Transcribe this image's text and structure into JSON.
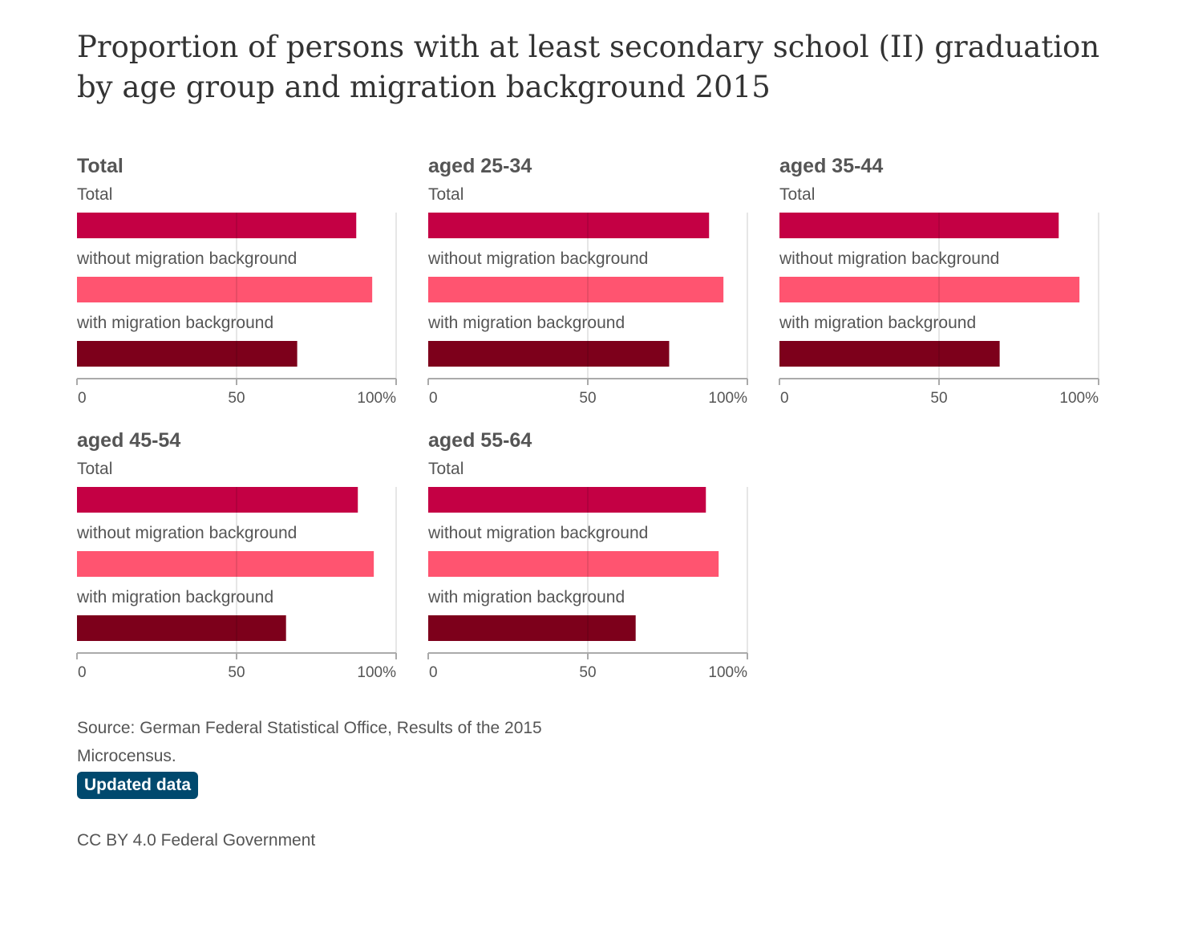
{
  "title": "Proportion of persons with at least secondary school (II) graduation by age group and migration background 2015",
  "colors": {
    "total": "#c40044",
    "without": "#ff5470",
    "with": "#7d001b",
    "badge": "#00496e",
    "text": "#555555"
  },
  "chart_data": [
    {
      "type": "bar",
      "title": "Total",
      "categories": [
        "Total",
        "without migration background",
        "with migration background"
      ],
      "values": [
        87.5,
        92.5,
        69
      ],
      "xlim": [
        0,
        100
      ],
      "xticks": [
        "0",
        "50",
        "100%"
      ]
    },
    {
      "type": "bar",
      "title": "aged 25-34",
      "categories": [
        "Total",
        "without migration background",
        "with migration background"
      ],
      "values": [
        88,
        92.5,
        75.5
      ],
      "xlim": [
        0,
        100
      ],
      "xticks": [
        "0",
        "50",
        "100%"
      ]
    },
    {
      "type": "bar",
      "title": "aged 35-44",
      "categories": [
        "Total",
        "without migration background",
        "with migration background"
      ],
      "values": [
        87.5,
        94,
        69
      ],
      "xlim": [
        0,
        100
      ],
      "xticks": [
        "0",
        "50",
        "100%"
      ]
    },
    {
      "type": "bar",
      "title": "aged 45-54",
      "categories": [
        "Total",
        "without migration background",
        "with migration background"
      ],
      "values": [
        88,
        93,
        65.5
      ],
      "xlim": [
        0,
        100
      ],
      "xticks": [
        "0",
        "50",
        "100%"
      ]
    },
    {
      "type": "bar",
      "title": "aged 55-64",
      "categories": [
        "Total",
        "without migration background",
        "with migration background"
      ],
      "values": [
        87,
        91,
        65
      ],
      "xlim": [
        0,
        100
      ],
      "xticks": [
        "0",
        "50",
        "100%"
      ]
    }
  ],
  "source": "Source: German Federal Statistical Office, Results of the 2015 Microcensus.",
  "badge_label": "Updated data",
  "license": "CC BY 4.0 Federal Government"
}
